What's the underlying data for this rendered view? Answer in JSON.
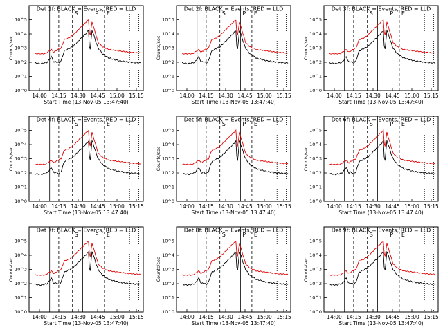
{
  "figure": {
    "colors": {
      "background": "#ffffff",
      "lld": "#e00000",
      "events": "#000000"
    }
  },
  "chart_data": [
    {
      "type": "line",
      "det": "1f",
      "title": "Det 1f: BLACK = Events, RED = LLD",
      "xlabel": "Start Time (13-Nov-05 13:47:40)",
      "ylabel": "Counts/sec",
      "yscale": "log",
      "ylim": [
        1,
        1000000
      ],
      "xticks": [
        "14:00",
        "14:15",
        "14:30",
        "14:45",
        "15:00",
        "15:15"
      ],
      "yticks": [
        "10^0",
        "10^1",
        "10^2",
        "10^3",
        "10^4",
        "10^5"
      ],
      "markers": [
        "S",
        "P",
        "E"
      ],
      "series": [
        {
          "name": "Events",
          "color": "#000000"
        },
        {
          "name": "LLD",
          "color": "#e00000"
        }
      ]
    },
    {
      "type": "line",
      "det": "2f",
      "title": "Det 2f: BLACK = Events, RED = LLD",
      "xlabel": "Start Time (13-Nov-05 13:47:40)",
      "ylabel": "Counts/sec",
      "yscale": "log",
      "ylim": [
        1,
        1000000
      ],
      "xticks": [
        "14:00",
        "14:15",
        "14:30",
        "14:45",
        "15:00",
        "15:15"
      ],
      "yticks": [
        "10^0",
        "10^1",
        "10^2",
        "10^3",
        "10^4",
        "10^5"
      ],
      "markers": [
        "S",
        "P",
        "E"
      ],
      "series": [
        {
          "name": "Events",
          "color": "#000000"
        },
        {
          "name": "LLD",
          "color": "#e00000"
        }
      ]
    },
    {
      "type": "line",
      "det": "3f",
      "title": "Det 3f: BLACK = Events, RED = LLD",
      "xlabel": "Start Time (13-Nov-05 13:47:40)",
      "ylabel": "Counts/sec",
      "yscale": "log",
      "ylim": [
        1,
        1000000
      ],
      "xticks": [
        "14:00",
        "14:15",
        "14:30",
        "14:45",
        "15:00",
        "15:15"
      ],
      "yticks": [
        "10^0",
        "10^1",
        "10^2",
        "10^3",
        "10^4",
        "10^5"
      ],
      "markers": [
        "S",
        "P",
        "E"
      ],
      "series": [
        {
          "name": "Events",
          "color": "#000000"
        },
        {
          "name": "LLD",
          "color": "#e00000"
        }
      ]
    },
    {
      "type": "line",
      "det": "4f",
      "title": "Det 4f: BLACK = Events, RED = LLD",
      "xlabel": "Start Time (13-Nov-05 13:47:40)",
      "ylabel": "Counts/sec",
      "yscale": "log",
      "ylim": [
        1,
        1000000
      ],
      "xticks": [
        "14:00",
        "14:15",
        "14:30",
        "14:45",
        "15:00",
        "15:15"
      ],
      "yticks": [
        "10^0",
        "10^1",
        "10^2",
        "10^3",
        "10^4",
        "10^5"
      ],
      "markers": [
        "S",
        "P",
        "E"
      ],
      "series": [
        {
          "name": "Events",
          "color": "#000000"
        },
        {
          "name": "LLD",
          "color": "#e00000"
        }
      ]
    },
    {
      "type": "line",
      "det": "5f",
      "title": "Det 5f: BLACK = Events, RED = LLD",
      "xlabel": "Start Time (13-Nov-05 13:47:40)",
      "ylabel": "Counts/sec",
      "yscale": "log",
      "ylim": [
        1,
        1000000
      ],
      "xticks": [
        "14:00",
        "14:15",
        "14:30",
        "14:45",
        "15:00",
        "15:15"
      ],
      "yticks": [
        "10^0",
        "10^1",
        "10^2",
        "10^3",
        "10^4",
        "10^5"
      ],
      "markers": [
        "S",
        "P",
        "E"
      ],
      "series": [
        {
          "name": "Events",
          "color": "#000000"
        },
        {
          "name": "LLD",
          "color": "#e00000"
        }
      ]
    },
    {
      "type": "line",
      "det": "6f",
      "title": "Det 6f: BLACK = Events, RED = LLD",
      "xlabel": "Start Time (13-Nov-05 13:47:40)",
      "ylabel": "Counts/sec",
      "yscale": "log",
      "ylim": [
        1,
        1000000
      ],
      "xticks": [
        "14:00",
        "14:15",
        "14:30",
        "14:45",
        "15:00",
        "15:15"
      ],
      "yticks": [
        "10^0",
        "10^1",
        "10^2",
        "10^3",
        "10^4",
        "10^5"
      ],
      "markers": [
        "S",
        "P",
        "E"
      ],
      "series": [
        {
          "name": "Events",
          "color": "#000000"
        },
        {
          "name": "LLD",
          "color": "#e00000"
        }
      ]
    },
    {
      "type": "line",
      "det": "7f",
      "title": "Det 7f: BLACK = Events, RED = LLD",
      "xlabel": "Start Time (13-Nov-05 13:47:40)",
      "ylabel": "Counts/sec",
      "yscale": "log",
      "ylim": [
        1,
        1000000
      ],
      "xticks": [
        "14:00",
        "14:15",
        "14:30",
        "14:45",
        "15:00",
        "15:15"
      ],
      "yticks": [
        "10^0",
        "10^1",
        "10^2",
        "10^3",
        "10^4",
        "10^5"
      ],
      "markers": [
        "S",
        "P",
        "E"
      ],
      "series": [
        {
          "name": "Events",
          "color": "#000000"
        },
        {
          "name": "LLD",
          "color": "#e00000"
        }
      ]
    },
    {
      "type": "line",
      "det": "8f",
      "title": "Det 8f: BLACK = Events, RED = LLD",
      "xlabel": "Start Time (13-Nov-05 13:47:40)",
      "ylabel": "Counts/sec",
      "yscale": "log",
      "ylim": [
        1,
        1000000
      ],
      "xticks": [
        "14:00",
        "14:15",
        "14:30",
        "14:45",
        "15:00",
        "15:15"
      ],
      "yticks": [
        "10^0",
        "10^1",
        "10^2",
        "10^3",
        "10^4",
        "10^5"
      ],
      "markers": [
        "S",
        "P",
        "E"
      ],
      "series": [
        {
          "name": "Events",
          "color": "#000000"
        },
        {
          "name": "LLD",
          "color": "#e00000"
        }
      ]
    },
    {
      "type": "line",
      "det": "9f",
      "title": "Det 9f: BLACK = Events, RED = LLD",
      "xlabel": "Start Time (13-Nov-05 13:47:40)",
      "ylabel": "Counts/sec",
      "yscale": "log",
      "ylim": [
        1,
        1000000
      ],
      "xticks": [
        "14:00",
        "14:15",
        "14:30",
        "14:45",
        "15:00",
        "15:15"
      ],
      "yticks": [
        "10^0",
        "10^1",
        "10^2",
        "10^3",
        "10^4",
        "10^5"
      ],
      "markers": [
        "S",
        "P",
        "E"
      ],
      "series": [
        {
          "name": "Events",
          "color": "#000000"
        },
        {
          "name": "LLD",
          "color": "#e00000"
        }
      ]
    }
  ]
}
